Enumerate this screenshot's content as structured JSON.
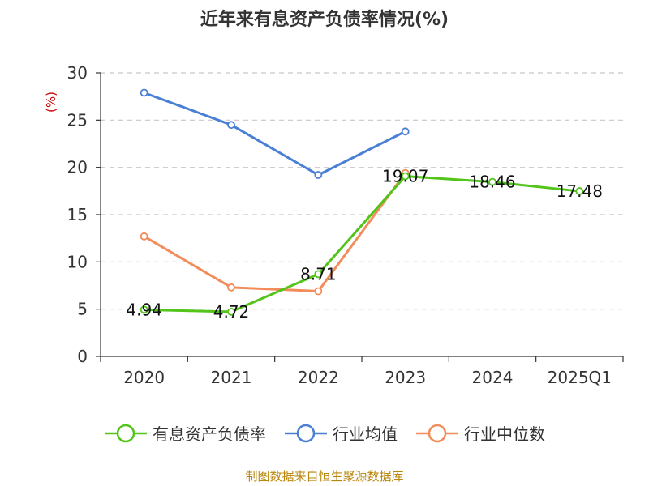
{
  "chart_data": {
    "type": "line",
    "title": "近年来有息资产负债率情况(%)",
    "ylabel": "(%)",
    "xlabel": "",
    "categories": [
      "2020",
      "2021",
      "2022",
      "2023",
      "2024",
      "2025Q1"
    ],
    "ylim": [
      0,
      30
    ],
    "yticks": [
      0,
      5,
      10,
      15,
      20,
      25,
      30
    ],
    "grid": true,
    "legend_position": "bottom",
    "series": [
      {
        "name": "有息资产负债率",
        "color": "#52c41a",
        "values": [
          4.94,
          4.72,
          8.71,
          19.07,
          18.46,
          17.48
        ],
        "labels": [
          "4.94",
          "4.72",
          "8.71",
          "19.07",
          "18.46",
          "17.48"
        ]
      },
      {
        "name": "行业均值",
        "color": "#4a7fd6",
        "values": [
          27.9,
          24.5,
          19.2,
          23.8,
          null,
          null
        ]
      },
      {
        "name": "行业中位数",
        "color": "#f28c5a",
        "values": [
          12.7,
          7.3,
          6.9,
          19.4,
          null,
          null
        ]
      }
    ]
  },
  "source": "制图数据来自恒生聚源数据库"
}
